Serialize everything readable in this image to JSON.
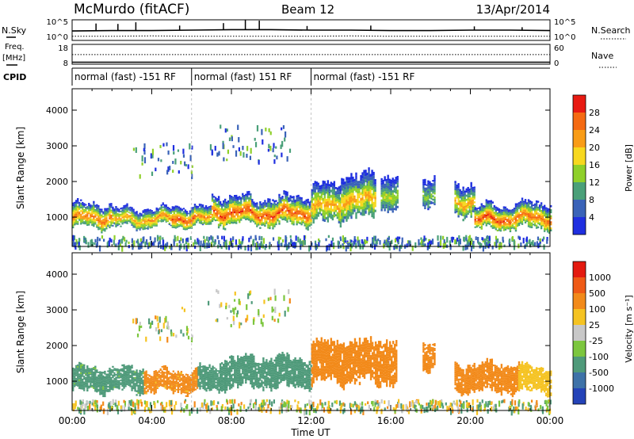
{
  "header": {
    "station": "McMurdo (fitACF)",
    "beam": "Beam 12",
    "date": "13/Apr/2014"
  },
  "summary_panels": {
    "nsky_label": "N.Sky",
    "nsearch_label": "N.Search",
    "nsky_ticks": [
      "10^5",
      "10^0"
    ],
    "freq_label": "Freq.",
    "freq_unit": "[MHz]",
    "freq_ticks": [
      "18",
      "8"
    ],
    "nave_label": "Nave",
    "nave_ticks": [
      "60",
      "0"
    ],
    "cpid_label": "CPID",
    "cpid_segments": [
      {
        "label": "normal (fast) -151 RF",
        "start_hour": 0,
        "end_hour": 6
      },
      {
        "label": "normal (fast) 151 RF",
        "start_hour": 6,
        "end_hour": 12
      },
      {
        "label": "normal (fast) -151 RF",
        "start_hour": 12,
        "end_hour": 24
      }
    ]
  },
  "axes": {
    "xlabel": "Time UT",
    "ylabel": "Slant Range [km]",
    "x_tick_labels": [
      "00:00",
      "04:00",
      "08:00",
      "12:00",
      "16:00",
      "20:00",
      "00:00"
    ],
    "x_tick_hours": [
      0,
      4,
      8,
      12,
      16,
      20,
      24
    ],
    "xlim_hours": [
      0,
      24
    ],
    "y_ticks": [
      1000,
      2000,
      3000,
      4000
    ],
    "ylim_km": [
      180,
      4600
    ]
  },
  "colorbars": {
    "power": {
      "label": "Power [dB]",
      "ticks": [
        "4",
        "8",
        "12",
        "16",
        "20",
        "24",
        "28"
      ],
      "colors": [
        "#1f2fe0",
        "#3a63b8",
        "#4aa079",
        "#8fd02a",
        "#f7d81f",
        "#f99c17",
        "#f56a12",
        "#e81a12"
      ]
    },
    "velocity": {
      "label": "Velocity [m s⁻¹]",
      "ticks": [
        "1000",
        "500",
        "100",
        "25",
        "-25",
        "-100",
        "-500",
        "-1000"
      ],
      "colors": [
        "#2443b8",
        "#3e72a8",
        "#4f9a7a",
        "#7cc63e",
        "#c8c8c8",
        "#f5c322",
        "#f28a1a",
        "#ef5a16",
        "#e41a10"
      ]
    }
  },
  "chart_data": [
    {
      "type": "line",
      "title": "",
      "xlabel": "",
      "ylabel": "",
      "series": [
        {
          "name": "N.Sky"
        },
        {
          "name": "N.Search"
        }
      ],
      "x_hours": [
        0,
        2,
        4,
        6,
        8,
        10,
        12,
        14,
        16,
        18,
        20,
        22,
        24
      ],
      "nsky_log10": [
        2.3,
        2.4,
        2.4,
        2.5,
        2.6,
        2.6,
        2.5,
        2.5,
        2.4,
        2.4,
        2.5,
        2.5,
        2.4
      ],
      "nsearch_log10": [
        1.0,
        1.0,
        1.1,
        1.0,
        1.0,
        1.0,
        1.0,
        1.1,
        1.0,
        1.0,
        1.0,
        1.0,
        1.0
      ],
      "nsky_spikes": [
        [
          1.2,
          4.1
        ],
        [
          2.3,
          4.0
        ],
        [
          3.2,
          4.4
        ],
        [
          5.4,
          3.6
        ],
        [
          7.6,
          4.2
        ],
        [
          8.7,
          5.0
        ],
        [
          9.4,
          4.8
        ],
        [
          11.8,
          3.5
        ],
        [
          15.0,
          3.6
        ],
        [
          20.2,
          3.4
        ],
        [
          22.6,
          3.2
        ]
      ],
      "ylim_log10": [
        0,
        5
      ]
    },
    {
      "type": "line",
      "title": "",
      "xlabel": "",
      "ylabel": "",
      "series": [
        {
          "name": "Freq."
        },
        {
          "name": "Nave"
        }
      ],
      "x_hours": [
        0,
        24
      ],
      "freq_mhz": [
        9.0,
        9.0
      ],
      "nave": [
        34,
        34
      ],
      "freq_ylim": [
        8,
        18
      ],
      "nave_ylim": [
        0,
        60
      ]
    },
    {
      "type": "heatmap",
      "title": "",
      "xlabel": "Time UT",
      "ylabel": "Slant Range [km]",
      "quantity": "Power [dB]",
      "xlim_hours": [
        0,
        24
      ],
      "ylim_km": [
        180,
        4600
      ],
      "scatter_bands": [
        {
          "start": 0.0,
          "end": 2.0,
          "center": 1050,
          "width": 320,
          "peak": 26
        },
        {
          "start": 2.0,
          "end": 3.8,
          "center": 980,
          "width": 260,
          "peak": 22
        },
        {
          "start": 3.8,
          "end": 5.0,
          "center": 1000,
          "width": 240,
          "peak": 24
        },
        {
          "start": 5.0,
          "end": 6.2,
          "center": 1030,
          "width": 280,
          "peak": 28
        },
        {
          "start": 6.2,
          "end": 7.0,
          "center": 1000,
          "width": 260,
          "peak": 24
        },
        {
          "start": 7.0,
          "end": 9.0,
          "center": 1200,
          "width": 380,
          "peak": 28
        },
        {
          "start": 9.0,
          "end": 10.6,
          "center": 1150,
          "width": 360,
          "peak": 28
        },
        {
          "start": 10.6,
          "end": 12.0,
          "center": 1200,
          "width": 380,
          "peak": 27
        },
        {
          "start": 12.0,
          "end": 13.5,
          "center": 1400,
          "width": 500,
          "peak": 22
        },
        {
          "start": 13.5,
          "end": 15.2,
          "center": 1600,
          "width": 560,
          "peak": 22
        },
        {
          "start": 15.5,
          "end": 16.3,
          "center": 1700,
          "width": 500,
          "peak": 16
        },
        {
          "start": 17.6,
          "end": 18.2,
          "center": 1750,
          "width": 360,
          "peak": 14
        },
        {
          "start": 19.2,
          "end": 20.2,
          "center": 1500,
          "width": 420,
          "peak": 22
        },
        {
          "start": 20.2,
          "end": 22.0,
          "center": 1000,
          "width": 320,
          "peak": 28
        },
        {
          "start": 22.0,
          "end": 24.0,
          "center": 1050,
          "width": 340,
          "peak": 26
        }
      ],
      "scattered_patches": [
        {
          "start": 6.8,
          "end": 11.0,
          "range_min": 2600,
          "range_max": 3600
        },
        {
          "start": 3.0,
          "end": 6.0,
          "range_min": 2200,
          "range_max": 3100
        },
        {
          "start": 0.0,
          "end": 24.0,
          "range_min": 200,
          "range_max": 500
        }
      ]
    },
    {
      "type": "heatmap",
      "title": "",
      "xlabel": "Time UT",
      "ylabel": "Slant Range [km]",
      "quantity": "Velocity [m s-1]",
      "xlim_hours": [
        0,
        24
      ],
      "ylim_km": [
        180,
        4600
      ],
      "scatter_bands": [
        {
          "start": 0.0,
          "end": 3.6,
          "center": 1050,
          "width": 320,
          "velocity": 150
        },
        {
          "start": 3.6,
          "end": 6.3,
          "center": 1000,
          "width": 280,
          "velocity": -150
        },
        {
          "start": 6.3,
          "end": 7.4,
          "center": 1050,
          "width": 320,
          "velocity": 250
        },
        {
          "start": 7.4,
          "end": 12.0,
          "center": 1250,
          "width": 400,
          "velocity": 300
        },
        {
          "start": 12.0,
          "end": 16.3,
          "center": 1550,
          "width": 560,
          "velocity": -200
        },
        {
          "start": 17.6,
          "end": 18.2,
          "center": 1750,
          "width": 360,
          "velocity": -300
        },
        {
          "start": 19.2,
          "end": 22.4,
          "center": 1100,
          "width": 380,
          "velocity": -250
        },
        {
          "start": 22.4,
          "end": 24.0,
          "center": 1050,
          "width": 340,
          "velocity": -60
        }
      ],
      "scattered_patches": [
        {
          "start": 6.8,
          "end": 11.0,
          "range_min": 2600,
          "range_max": 3600
        },
        {
          "start": 3.0,
          "end": 6.0,
          "range_min": 2200,
          "range_max": 3100
        },
        {
          "start": 0.0,
          "end": 24.0,
          "range_min": 200,
          "range_max": 500
        }
      ]
    }
  ]
}
